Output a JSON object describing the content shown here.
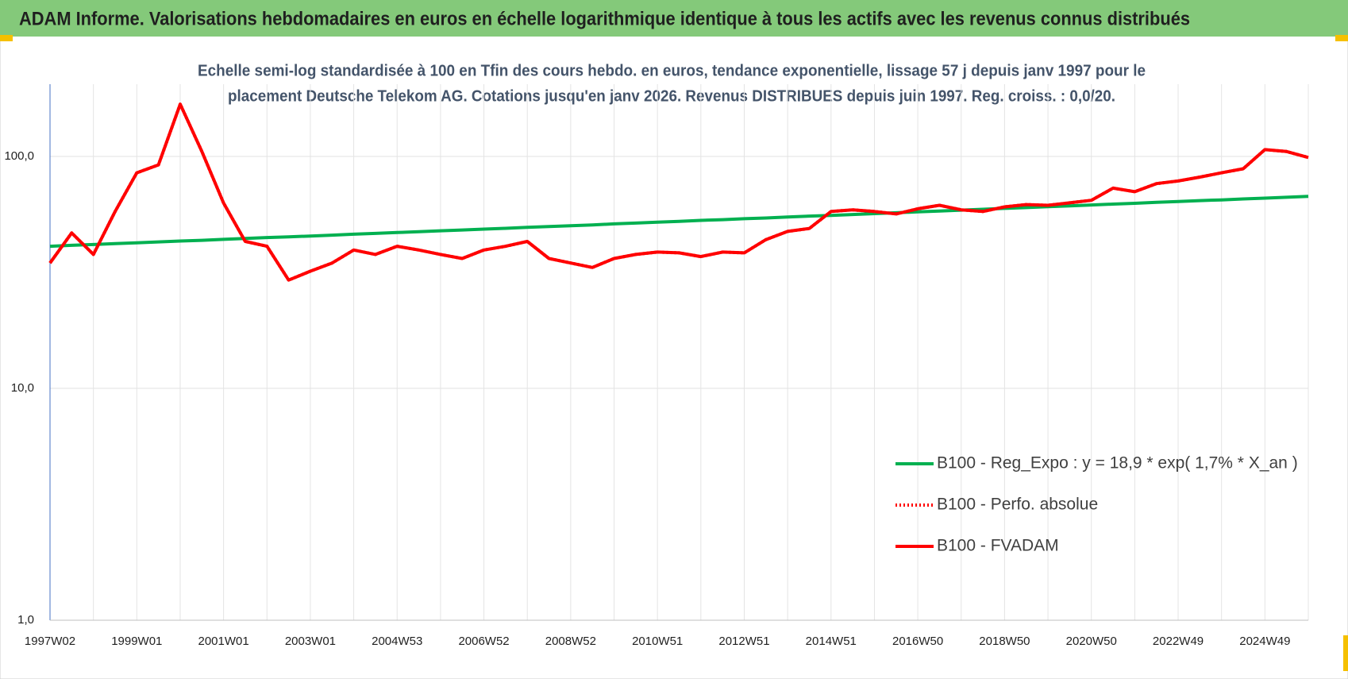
{
  "header": {
    "title": "ADAM Informe. Valorisations hebdomadaires en euros en échelle logarithmique identique à tous les actifs avec les revenus connus distribués"
  },
  "chart_data": {
    "type": "line",
    "subtitle": [
      "Echelle semi-log standardisée à 100 en Tfin des cours hebdo. en euros, tendance exponentielle, lissage 57 j depuis janv 1997 pour le",
      "placement Deutsche Telekom AG. Cotations jusqu'en janv 2026. Revenus DISTRIBUES depuis juin 1997. Reg. croiss. : 0,0/20."
    ],
    "categories": [
      "1997W02",
      null,
      null,
      null,
      "1999W01",
      null,
      null,
      null,
      "2001W01",
      null,
      null,
      null,
      "2003W01",
      null,
      null,
      null,
      "2004W53",
      null,
      null,
      null,
      "2006W52",
      null,
      null,
      null,
      "2008W52",
      null,
      null,
      null,
      "2010W51",
      null,
      null,
      null,
      "2012W51",
      null,
      null,
      null,
      "2014W51",
      null,
      null,
      null,
      "2016W50",
      null,
      null,
      null,
      "2018W50",
      null,
      null,
      null,
      "2020W50",
      null,
      null,
      null,
      "2022W49",
      null,
      null,
      null,
      "2024W49",
      null,
      null
    ],
    "series": [
      {
        "name": "B100 - Reg_Expo : y = 18,9 * exp( 1,7% *  X_an )",
        "color": "#00b050",
        "dash": "solid",
        "values": [
          41.0,
          41.4,
          41.7,
          42.1,
          42.4,
          42.8,
          43.2,
          43.5,
          43.9,
          44.3,
          44.7,
          45.0,
          45.4,
          45.8,
          46.2,
          46.6,
          47.0,
          47.4,
          47.8,
          48.2,
          48.6,
          49.0,
          49.5,
          49.9,
          50.3,
          50.7,
          51.2,
          51.6,
          52.1,
          52.5,
          53.0,
          53.4,
          53.9,
          54.3,
          54.8,
          55.3,
          55.7,
          56.2,
          56.7,
          57.2,
          57.7,
          58.2,
          58.7,
          59.2,
          59.7,
          60.2,
          60.7,
          61.2,
          61.8,
          62.3,
          62.8,
          63.4,
          63.9,
          64.5,
          65.0,
          65.6,
          66.1,
          66.7,
          67.3
        ]
      },
      {
        "name": "B100 - Perfo. absolue",
        "color": "#ff0000",
        "dash": "dotted",
        "values": [
          34.7,
          46.8,
          37.8,
          57.9,
          85,
          92,
          168,
          105,
          63,
          43,
          41,
          29.3,
          32,
          34.7,
          39.5,
          37.8,
          41,
          39.5,
          37.8,
          36.3,
          39.5,
          41,
          43,
          36.3,
          34.7,
          33.2,
          36.3,
          37.8,
          38.7,
          38.4,
          37,
          38.7,
          38.4,
          43.8,
          47.5,
          48.9,
          57.9,
          58.9,
          57.9,
          56.5,
          59.5,
          61.6,
          58.9,
          57.9,
          60.6,
          62,
          61.6,
          63.1,
          64.7,
          73,
          70.5,
          76.4,
          78.4,
          81.5,
          85,
          88.5,
          107,
          105,
          99
        ]
      },
      {
        "name": "B100 - FVADAM",
        "color": "#ff0000",
        "dash": "solid",
        "values": [
          34.7,
          46.8,
          37.8,
          57.9,
          85,
          92,
          168,
          105,
          63,
          43,
          41,
          29.3,
          32,
          34.7,
          39.5,
          37.8,
          41,
          39.5,
          37.8,
          36.3,
          39.5,
          41,
          43,
          36.3,
          34.7,
          33.2,
          36.3,
          37.8,
          38.7,
          38.4,
          37,
          38.7,
          38.4,
          43.8,
          47.5,
          48.9,
          57.9,
          58.9,
          57.9,
          56.5,
          59.5,
          61.6,
          58.9,
          57.9,
          60.6,
          62,
          61.6,
          63.1,
          64.7,
          73,
          70.5,
          76.4,
          78.4,
          81.5,
          85,
          88.5,
          107,
          105,
          99
        ]
      }
    ],
    "ylim": [
      1,
      205
    ],
    "log_y": true,
    "yticks": [
      {
        "value": 1,
        "label": "1,0"
      },
      {
        "value": 10,
        "label": "10,0"
      },
      {
        "value": 100,
        "label": "100,0"
      }
    ],
    "grid": true,
    "legend": "lower right"
  }
}
